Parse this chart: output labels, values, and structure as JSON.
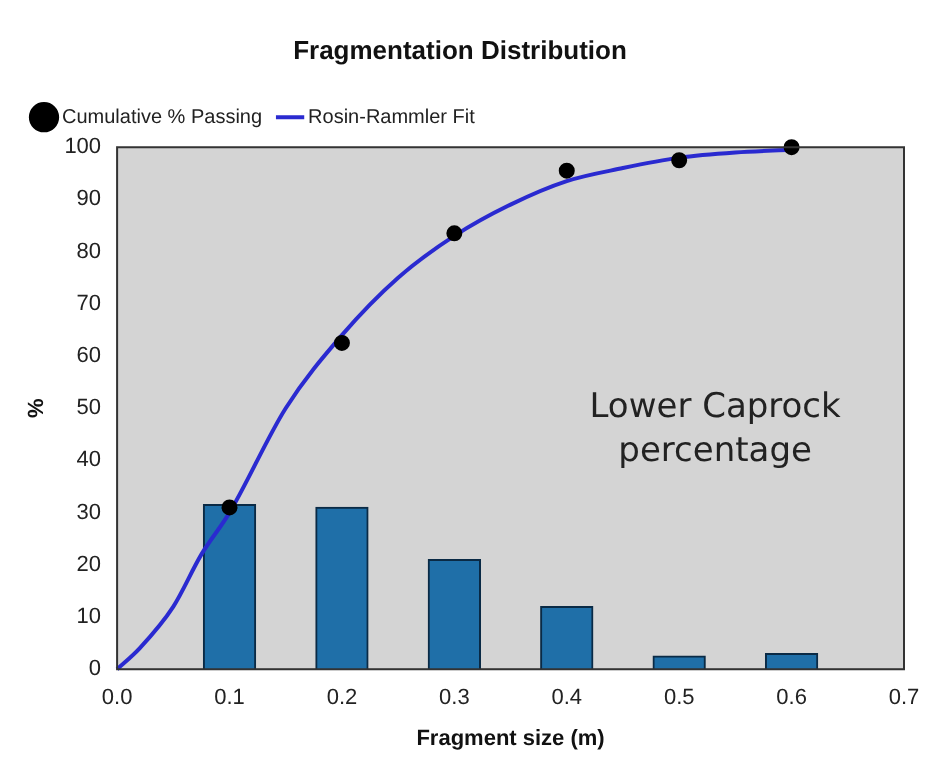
{
  "chart_data": {
    "type": "bar",
    "title": "Fragmentation Distribution",
    "xlabel": "Fragment size (m)",
    "ylabel": "%",
    "xlim": [
      0,
      0.7
    ],
    "xticks": [
      {
        "value": 0,
        "label": "0.0"
      },
      0.1,
      0.2,
      0.3,
      0.4,
      0.5,
      0.6,
      0.7
    ],
    "ylim": [
      0,
      100
    ],
    "yticks": [
      0,
      10,
      20,
      30,
      40,
      50,
      60,
      70,
      80,
      90,
      100
    ],
    "legend": "top left",
    "annotations": [
      "Lower Caprock percentage"
    ],
    "series": [
      {
        "color": "#1f6fa8",
        "x": [
          0.1,
          0.2,
          0.3,
          0.4,
          0.5,
          0.6
        ],
        "values": [
          31.5,
          31,
          21,
          12,
          2.5,
          3
        ]
      },
      {
        "type": "scatter",
        "name": "Cumulative % Passing",
        "color": "#000000",
        "marker": "circle",
        "x": [
          0.1,
          0.2,
          0.3,
          0.4,
          0.5,
          0.6
        ],
        "values": [
          31,
          62.5,
          83.5,
          95.5,
          97.5,
          100
        ]
      },
      {
        "type": "line",
        "name": "Rosin-Rammler Fit",
        "color": "#2a2ad0",
        "x": [
          0,
          0.02,
          0.05,
          0.075,
          0.1,
          0.15,
          0.2,
          0.25,
          0.3,
          0.35,
          0.4,
          0.45,
          0.5,
          0.55,
          0.6
        ],
        "values": [
          0,
          4,
          12,
          22,
          30,
          50,
          64,
          75,
          83,
          89,
          93.5,
          96,
          98,
          99,
          99.5
        ]
      }
    ]
  }
}
